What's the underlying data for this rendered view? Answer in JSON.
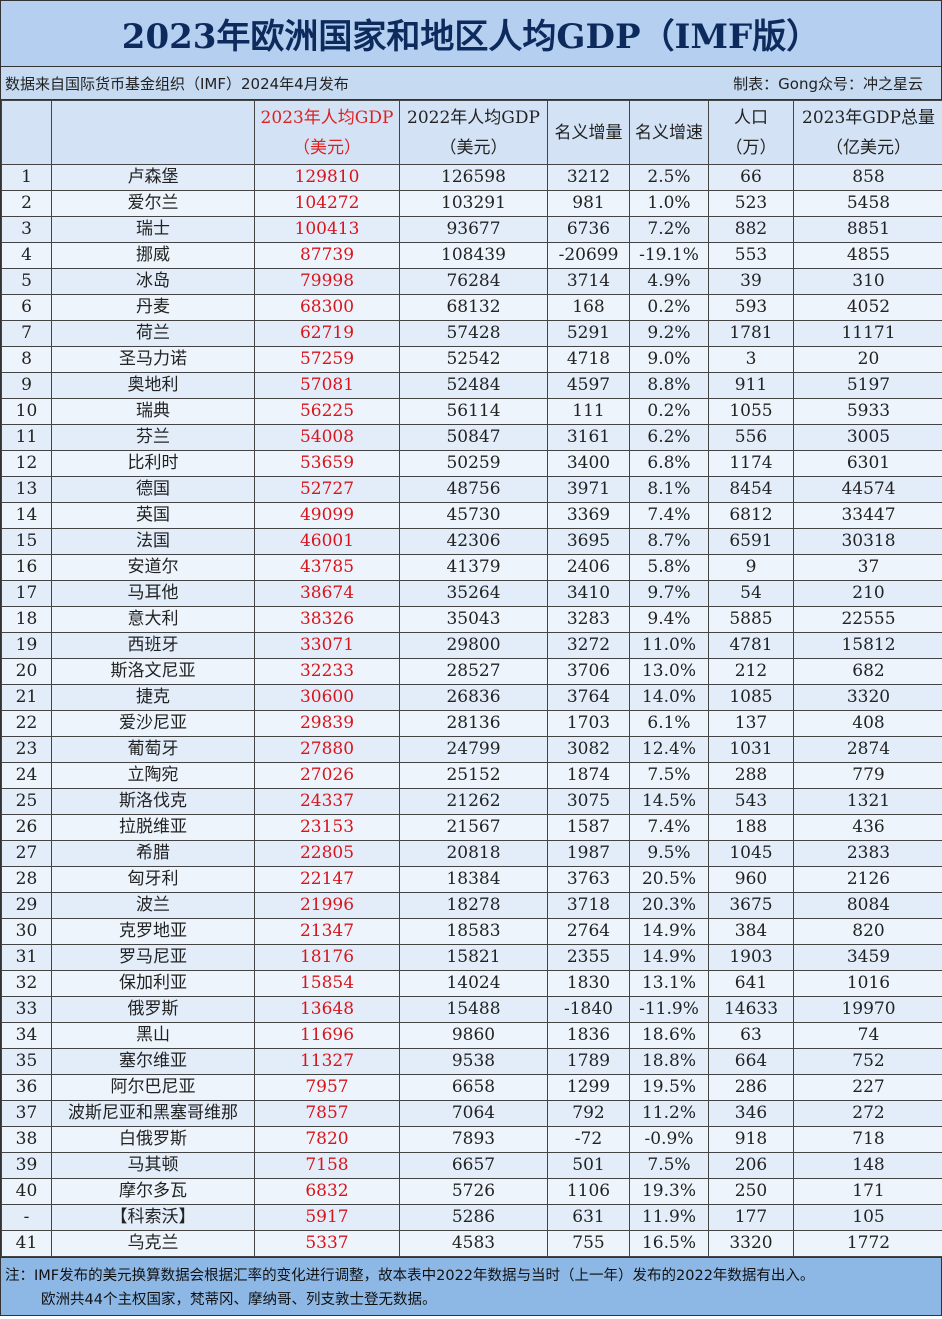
{
  "title": "2023年欧洲国家和地区人均GDP（IMF版）",
  "source": "数据来自国际货币基金组织（IMF）2024年4月发布",
  "author": "制表：Gong众号：冲之星云",
  "headers": [
    {
      "l1": "",
      "l2": ""
    },
    {
      "l1": "",
      "l2": ""
    },
    {
      "l1": "2023年人均GDP",
      "l2": "（美元）"
    },
    {
      "l1": "2022年人均GDP",
      "l2": "（美元）"
    },
    {
      "l1": "名义增量",
      "l2": ""
    },
    {
      "l1": "名义增速",
      "l2": ""
    },
    {
      "l1": "人口",
      "l2": "（万）"
    },
    {
      "l1": "2023年GDP总量",
      "l2": "（亿美元）"
    }
  ],
  "colors": {
    "accent_red": "#d9141b",
    "title_bg": "#b4cff0",
    "title_text": "#0c2a5c",
    "note_bg": "#8db8e6"
  },
  "rows": [
    [
      "1",
      "卢森堡",
      "129810",
      "126598",
      "3212",
      "2.5%",
      "66",
      "858"
    ],
    [
      "2",
      "爱尔兰",
      "104272",
      "103291",
      "981",
      "1.0%",
      "523",
      "5458"
    ],
    [
      "3",
      "瑞士",
      "100413",
      "93677",
      "6736",
      "7.2%",
      "882",
      "8851"
    ],
    [
      "4",
      "挪威",
      "87739",
      "108439",
      "-20699",
      "-19.1%",
      "553",
      "4855"
    ],
    [
      "5",
      "冰岛",
      "79998",
      "76284",
      "3714",
      "4.9%",
      "39",
      "310"
    ],
    [
      "6",
      "丹麦",
      "68300",
      "68132",
      "168",
      "0.2%",
      "593",
      "4052"
    ],
    [
      "7",
      "荷兰",
      "62719",
      "57428",
      "5291",
      "9.2%",
      "1781",
      "11171"
    ],
    [
      "8",
      "圣马力诺",
      "57259",
      "52542",
      "4718",
      "9.0%",
      "3",
      "20"
    ],
    [
      "9",
      "奥地利",
      "57081",
      "52484",
      "4597",
      "8.8%",
      "911",
      "5197"
    ],
    [
      "10",
      "瑞典",
      "56225",
      "56114",
      "111",
      "0.2%",
      "1055",
      "5933"
    ],
    [
      "11",
      "芬兰",
      "54008",
      "50847",
      "3161",
      "6.2%",
      "556",
      "3005"
    ],
    [
      "12",
      "比利时",
      "53659",
      "50259",
      "3400",
      "6.8%",
      "1174",
      "6301"
    ],
    [
      "13",
      "德国",
      "52727",
      "48756",
      "3971",
      "8.1%",
      "8454",
      "44574"
    ],
    [
      "14",
      "英国",
      "49099",
      "45730",
      "3369",
      "7.4%",
      "6812",
      "33447"
    ],
    [
      "15",
      "法国",
      "46001",
      "42306",
      "3695",
      "8.7%",
      "6591",
      "30318"
    ],
    [
      "16",
      "安道尔",
      "43785",
      "41379",
      "2406",
      "5.8%",
      "9",
      "37"
    ],
    [
      "17",
      "马耳他",
      "38674",
      "35264",
      "3410",
      "9.7%",
      "54",
      "210"
    ],
    [
      "18",
      "意大利",
      "38326",
      "35043",
      "3283",
      "9.4%",
      "5885",
      "22555"
    ],
    [
      "19",
      "西班牙",
      "33071",
      "29800",
      "3272",
      "11.0%",
      "4781",
      "15812"
    ],
    [
      "20",
      "斯洛文尼亚",
      "32233",
      "28527",
      "3706",
      "13.0%",
      "212",
      "682"
    ],
    [
      "21",
      "捷克",
      "30600",
      "26836",
      "3764",
      "14.0%",
      "1085",
      "3320"
    ],
    [
      "22",
      "爱沙尼亚",
      "29839",
      "28136",
      "1703",
      "6.1%",
      "137",
      "408"
    ],
    [
      "23",
      "葡萄牙",
      "27880",
      "24799",
      "3082",
      "12.4%",
      "1031",
      "2874"
    ],
    [
      "24",
      "立陶宛",
      "27026",
      "25152",
      "1874",
      "7.5%",
      "288",
      "779"
    ],
    [
      "25",
      "斯洛伐克",
      "24337",
      "21262",
      "3075",
      "14.5%",
      "543",
      "1321"
    ],
    [
      "26",
      "拉脱维亚",
      "23153",
      "21567",
      "1587",
      "7.4%",
      "188",
      "436"
    ],
    [
      "27",
      "希腊",
      "22805",
      "20818",
      "1987",
      "9.5%",
      "1045",
      "2383"
    ],
    [
      "28",
      "匈牙利",
      "22147",
      "18384",
      "3763",
      "20.5%",
      "960",
      "2126"
    ],
    [
      "29",
      "波兰",
      "21996",
      "18278",
      "3718",
      "20.3%",
      "3675",
      "8084"
    ],
    [
      "30",
      "克罗地亚",
      "21347",
      "18583",
      "2764",
      "14.9%",
      "384",
      "820"
    ],
    [
      "31",
      "罗马尼亚",
      "18176",
      "15821",
      "2355",
      "14.9%",
      "1903",
      "3459"
    ],
    [
      "32",
      "保加利亚",
      "15854",
      "14024",
      "1830",
      "13.1%",
      "641",
      "1016"
    ],
    [
      "33",
      "俄罗斯",
      "13648",
      "15488",
      "-1840",
      "-11.9%",
      "14633",
      "19970"
    ],
    [
      "34",
      "黑山",
      "11696",
      "9860",
      "1836",
      "18.6%",
      "63",
      "74"
    ],
    [
      "35",
      "塞尔维亚",
      "11327",
      "9538",
      "1789",
      "18.8%",
      "664",
      "752"
    ],
    [
      "36",
      "阿尔巴尼亚",
      "7957",
      "6658",
      "1299",
      "19.5%",
      "286",
      "227"
    ],
    [
      "37",
      "波斯尼亚和黑塞哥维那",
      "7857",
      "7064",
      "792",
      "11.2%",
      "346",
      "272"
    ],
    [
      "38",
      "白俄罗斯",
      "7820",
      "7893",
      "-72",
      "-0.9%",
      "918",
      "718"
    ],
    [
      "39",
      "马其顿",
      "7158",
      "6657",
      "501",
      "7.5%",
      "206",
      "148"
    ],
    [
      "40",
      "摩尔多瓦",
      "6832",
      "5726",
      "1106",
      "19.3%",
      "250",
      "171"
    ],
    [
      "-",
      "【科索沃】",
      "5917",
      "5286",
      "631",
      "11.9%",
      "177",
      "105"
    ],
    [
      "41",
      "乌克兰",
      "5337",
      "4583",
      "755",
      "16.5%",
      "3320",
      "1772"
    ]
  ],
  "note": {
    "line1": "注：IMF发布的美元换算数据会根据汇率的变化进行调整，故本表中2022年数据与当时（上一年）发布的2022年数据有出入。",
    "line2": "欧洲共44个主权国家，梵蒂冈、摩纳哥、列支敦士登无数据。"
  }
}
